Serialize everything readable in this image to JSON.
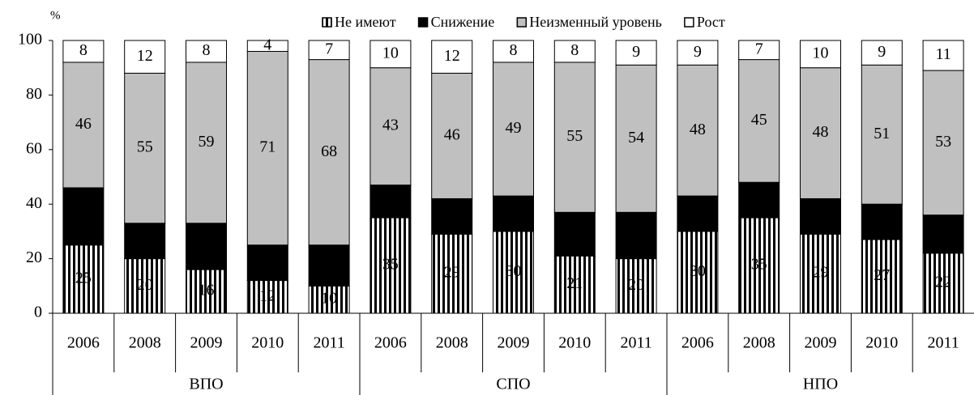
{
  "chart_data": {
    "type": "stacked_bar",
    "ylabel": "%",
    "groups": [
      "ВПО",
      "СПО",
      "НПО"
    ],
    "categories": [
      "2006",
      "2008",
      "2009",
      "2010",
      "2011",
      "2006",
      "2008",
      "2009",
      "2010",
      "2011",
      "2006",
      "2008",
      "2009",
      "2010",
      "2011"
    ],
    "series": [
      {
        "name": "Не имеют",
        "color": "#000000",
        "hatch": "vertical",
        "values": [
          25,
          20,
          16,
          12,
          10,
          35,
          29,
          30,
          21,
          20,
          30,
          35,
          29,
          27,
          22
        ]
      },
      {
        "name": "Снижение",
        "color": "#000000",
        "values": [
          21,
          13,
          17,
          13,
          15,
          12,
          13,
          13,
          16,
          17,
          13,
          13,
          13,
          13,
          14
        ]
      },
      {
        "name": "Неизменный уровень",
        "color": "#c0c0c0",
        "values": [
          46,
          55,
          59,
          71,
          68,
          43,
          46,
          49,
          55,
          54,
          48,
          45,
          48,
          51,
          53
        ]
      },
      {
        "name": "Рост",
        "color": "#ffffff",
        "values": [
          8,
          12,
          8,
          4,
          7,
          10,
          12,
          8,
          8,
          9,
          9,
          7,
          10,
          9,
          11
        ]
      }
    ],
    "ylim": [
      0,
      100
    ],
    "yticks": [
      0,
      20,
      40,
      60,
      80,
      100
    ]
  }
}
